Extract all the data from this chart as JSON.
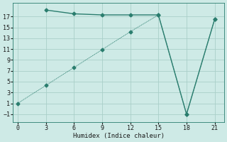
{
  "line1_x": [
    3,
    6,
    9,
    12,
    15,
    18,
    21
  ],
  "line1_y": [
    18.2,
    17.5,
    17.3,
    17.3,
    17.3,
    -1.0,
    16.5
  ],
  "line2_x": [
    0,
    3,
    6,
    9,
    12,
    15,
    18,
    21
  ],
  "line2_y": [
    1,
    4.3,
    7.6,
    10.9,
    14.2,
    17.3,
    -1.0,
    16.5
  ],
  "line_color": "#2a7d6e",
  "bg_color": "#ceeae6",
  "grid_color": "#aacfc9",
  "xlabel": "Humidex (Indice chaleur)",
  "xlim": [
    -0.5,
    22
  ],
  "ylim": [
    -2.5,
    19.5
  ],
  "xticks": [
    0,
    3,
    6,
    9,
    12,
    15,
    18,
    21
  ],
  "yticks": [
    -1,
    1,
    3,
    5,
    7,
    9,
    11,
    13,
    15,
    17
  ],
  "marker": "D",
  "markersize": 2.5,
  "linewidth1": 1.0,
  "linewidth2": 0.7
}
